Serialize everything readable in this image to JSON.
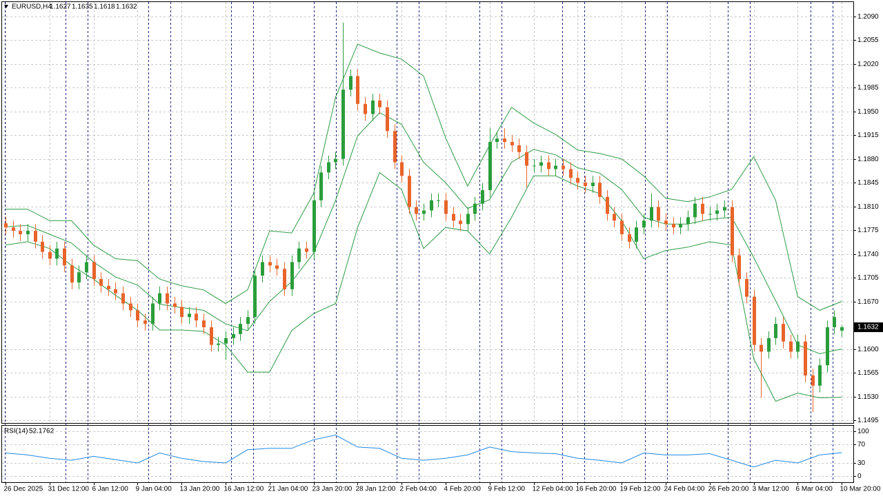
{
  "chart_data": [
    {
      "type": "candlestick",
      "symbol": "EURUSD,H4",
      "up_color": "#2a9d3b",
      "down_color": "#e8642a",
      "wick_color": "#333333",
      "open": [
        1.1785,
        1.1779,
        1.1774,
        1.1769,
        1.1774,
        1.1758,
        1.1743,
        1.1733,
        1.1748,
        1.1723,
        1.1698,
        1.1713,
        1.1728,
        1.1703,
        1.1693,
        1.1688,
        1.1682,
        1.1667,
        1.1657,
        1.1642,
        1.1637,
        1.1667,
        1.1682,
        1.1667,
        1.1662,
        1.1647,
        1.1652,
        1.1642,
        1.1632,
        1.1606,
        1.1608,
        1.1616,
        1.1622,
        1.1637,
        1.1647,
        1.1708,
        1.1728,
        1.1723,
        1.1718,
        1.1688,
        1.1728,
        1.1748,
        1.1743,
        1.1819,
        1.186,
        1.1875,
        1.188,
        1.1982,
        1.2002,
        1.1961,
        1.1946,
        1.1966,
        1.1956,
        1.1921,
        1.1875,
        1.1855,
        1.1809,
        1.1799,
        1.1804,
        1.1819,
        1.1819,
        1.1799,
        1.1789,
        1.1784,
        1.1799,
        1.1814,
        1.1834,
        1.1905,
        1.191,
        1.1905,
        1.19,
        1.189,
        1.187,
        1.187,
        1.1875,
        1.1865,
        1.187,
        1.1865,
        1.1852,
        1.1845,
        1.184,
        1.1845,
        1.1824,
        1.1799,
        1.1789,
        1.1769,
        1.1758,
        1.1779,
        1.1789,
        1.1809,
        1.1789,
        1.1784,
        1.1779,
        1.1784,
        1.1794,
        1.1814,
        1.1799,
        1.1799,
        1.1804,
        1.1809,
        1.1738,
        1.1703,
        1.1677,
        1.1606,
        1.1596,
        1.1616,
        1.1637,
        1.1611,
        1.1596,
        1.1611,
        1.1561,
        1.1546,
        1.1576,
        1.1632,
        1.1627
      ],
      "high": [
        1.1795,
        1.1789,
        1.1784,
        1.1784,
        1.1784,
        1.1768,
        1.1753,
        1.1758,
        1.1758,
        1.1733,
        1.1723,
        1.1738,
        1.1738,
        1.1713,
        1.1703,
        1.1698,
        1.1692,
        1.1677,
        1.1667,
        1.1652,
        1.1677,
        1.1692,
        1.1692,
        1.1677,
        1.1672,
        1.1662,
        1.1662,
        1.1652,
        1.1642,
        1.1618,
        1.1626,
        1.1632,
        1.1647,
        1.1657,
        1.1718,
        1.1738,
        1.1738,
        1.1733,
        1.1728,
        1.1738,
        1.1758,
        1.1758,
        1.1829,
        1.187,
        1.1885,
        1.189,
        1.2081,
        1.2012,
        1.2012,
        1.1971,
        1.1976,
        1.1976,
        1.1966,
        1.1931,
        1.1885,
        1.1865,
        1.1819,
        1.1814,
        1.1829,
        1.1829,
        1.1829,
        1.1809,
        1.1799,
        1.1809,
        1.1824,
        1.1844,
        1.1925,
        1.192,
        1.1925,
        1.1915,
        1.191,
        1.19,
        1.188,
        1.1885,
        1.1885,
        1.188,
        1.188,
        1.1875,
        1.1862,
        1.1855,
        1.1855,
        1.1855,
        1.1834,
        1.1809,
        1.1799,
        1.1779,
        1.1789,
        1.1799,
        1.1829,
        1.1819,
        1.1799,
        1.1794,
        1.1794,
        1.1804,
        1.1824,
        1.1824,
        1.1809,
        1.1814,
        1.1819,
        1.1819,
        1.1748,
        1.1713,
        1.1687,
        1.1616,
        1.1626,
        1.1647,
        1.1647,
        1.1621,
        1.1621,
        1.1621,
        1.1571,
        1.1586,
        1.1642,
        1.1657,
        1.1635
      ],
      "low": [
        1.1769,
        1.1764,
        1.1759,
        1.1759,
        1.1748,
        1.1733,
        1.1723,
        1.1723,
        1.1713,
        1.1688,
        1.1688,
        1.1703,
        1.1693,
        1.1683,
        1.1678,
        1.1672,
        1.1657,
        1.1647,
        1.1632,
        1.1627,
        1.1627,
        1.1657,
        1.1657,
        1.1652,
        1.1637,
        1.1637,
        1.1632,
        1.1622,
        1.1596,
        1.1596,
        1.1584,
        1.1606,
        1.1612,
        1.1627,
        1.1637,
        1.1698,
        1.1713,
        1.1708,
        1.1678,
        1.1678,
        1.1718,
        1.1733,
        1.1733,
        1.1809,
        1.185,
        1.1865,
        1.187,
        1.1972,
        1.1951,
        1.1936,
        1.1936,
        1.1946,
        1.1911,
        1.1865,
        1.1845,
        1.1799,
        1.1789,
        1.1789,
        1.1794,
        1.1809,
        1.1789,
        1.1779,
        1.1774,
        1.1774,
        1.1789,
        1.1804,
        1.1824,
        1.1895,
        1.1895,
        1.189,
        1.188,
        1.1838,
        1.186,
        1.186,
        1.1855,
        1.1855,
        1.1855,
        1.1842,
        1.1835,
        1.183,
        1.183,
        1.1814,
        1.1789,
        1.1779,
        1.1759,
        1.1748,
        1.1748,
        1.1769,
        1.1779,
        1.1779,
        1.1774,
        1.1769,
        1.1769,
        1.1774,
        1.1784,
        1.1789,
        1.1789,
        1.1789,
        1.1794,
        1.1728,
        1.1693,
        1.1667,
        1.1596,
        1.1528,
        1.1586,
        1.1606,
        1.1601,
        1.1586,
        1.1586,
        1.1551,
        1.1507,
        1.1536,
        1.1566,
        1.1622,
        1.1618
      ],
      "close": [
        1.1779,
        1.1774,
        1.1769,
        1.1774,
        1.1758,
        1.1743,
        1.1733,
        1.1748,
        1.1723,
        1.1698,
        1.1713,
        1.1728,
        1.1703,
        1.1693,
        1.1688,
        1.1682,
        1.1667,
        1.1657,
        1.1642,
        1.1637,
        1.1667,
        1.1682,
        1.1667,
        1.1662,
        1.1647,
        1.1652,
        1.1642,
        1.1632,
        1.1606,
        1.1608,
        1.1616,
        1.1622,
        1.1637,
        1.1647,
        1.1708,
        1.1728,
        1.1723,
        1.1718,
        1.1688,
        1.1728,
        1.1748,
        1.1743,
        1.1819,
        1.186,
        1.1875,
        1.188,
        1.1982,
        1.2002,
        1.1961,
        1.1946,
        1.1966,
        1.1956,
        1.1921,
        1.1875,
        1.1855,
        1.1809,
        1.1799,
        1.1804,
        1.1819,
        1.1819,
        1.1799,
        1.1789,
        1.1784,
        1.1799,
        1.1814,
        1.1834,
        1.1905,
        1.191,
        1.1905,
        1.19,
        1.189,
        1.187,
        1.187,
        1.1875,
        1.1865,
        1.187,
        1.1865,
        1.1852,
        1.1845,
        1.184,
        1.1845,
        1.1824,
        1.1799,
        1.1789,
        1.1769,
        1.1758,
        1.1779,
        1.1789,
        1.1809,
        1.1789,
        1.1784,
        1.1779,
        1.1784,
        1.1794,
        1.1814,
        1.1799,
        1.1799,
        1.1804,
        1.1809,
        1.1738,
        1.1703,
        1.1677,
        1.1606,
        1.1596,
        1.1616,
        1.1637,
        1.1611,
        1.1596,
        1.1611,
        1.1561,
        1.1546,
        1.1576,
        1.1632,
        1.1647,
        1.1632
      ],
      "bands": {
        "color": "#2e9b45",
        "x": [
          0,
          3,
          6,
          9,
          12,
          15,
          18,
          21,
          24,
          27,
          30,
          33,
          36,
          39,
          42,
          45,
          48,
          51,
          54,
          57,
          60,
          63,
          66,
          69,
          72,
          75,
          78,
          81,
          84,
          87,
          90,
          93,
          96,
          99,
          102,
          105,
          108,
          111,
          114
        ],
        "upper": [
          1.1806,
          1.1806,
          1.1789,
          1.1789,
          1.1753,
          1.1733,
          1.173,
          1.1703,
          1.1693,
          1.1687,
          1.1667,
          1.1687,
          1.1774,
          1.1771,
          1.1829,
          1.1971,
          1.2049,
          1.2036,
          1.2027,
          1.2002,
          1.1911,
          1.184,
          1.19,
          1.1956,
          1.1933,
          1.1916,
          1.1893,
          1.1888,
          1.188,
          1.1855,
          1.1822,
          1.1817,
          1.1824,
          1.1835,
          1.1883,
          1.1819,
          1.1677,
          1.1657,
          1.167
        ],
        "middle": [
          1.178,
          1.1782,
          1.1769,
          1.1756,
          1.1728,
          1.1706,
          1.1694,
          1.1666,
          1.1661,
          1.1657,
          1.1637,
          1.1627,
          1.167,
          1.1699,
          1.1741,
          1.1819,
          1.1914,
          1.1948,
          1.1931,
          1.1875,
          1.1845,
          1.1807,
          1.182,
          1.1875,
          1.1894,
          1.1886,
          1.1867,
          1.1859,
          1.1835,
          1.1794,
          1.1784,
          1.1784,
          1.1791,
          1.1794,
          1.1735,
          1.1671,
          1.1606,
          1.1593,
          1.16
        ],
        "lower": [
          1.1753,
          1.1758,
          1.1748,
          1.1723,
          1.1703,
          1.1679,
          1.1657,
          1.1628,
          1.1628,
          1.1626,
          1.1606,
          1.1566,
          1.1566,
          1.1627,
          1.1652,
          1.1667,
          1.1779,
          1.186,
          1.1835,
          1.1748,
          1.1779,
          1.1774,
          1.174,
          1.1794,
          1.1855,
          1.1855,
          1.184,
          1.1829,
          1.1789,
          1.1733,
          1.1745,
          1.175,
          1.1758,
          1.1753,
          1.1586,
          1.1523,
          1.1535,
          1.1528,
          1.1529
        ]
      },
      "ylim": [
        1.1491,
        1.2111
      ],
      "yticks": [
        {
          "value": 1.209,
          "label": "1.2090"
        },
        1.2055,
        {
          "value": 1.202,
          "label": "1.2020"
        },
        1.1985,
        {
          "value": 1.195,
          "label": "1.1950"
        },
        1.1915,
        {
          "value": 1.188,
          "label": "1.1880"
        },
        1.1845,
        {
          "value": 1.181,
          "label": "1.1810"
        },
        1.1775,
        {
          "value": 1.174,
          "label": "1.1740"
        },
        1.1705,
        {
          "value": 1.167,
          "label": "1.1670"
        },
        {
          "value": 1.16,
          "label": "1.1600"
        },
        1.1565,
        {
          "value": 1.153,
          "label": "1.1530"
        },
        1.1495
      ],
      "xlim": [
        -0.47,
        115.59
      ],
      "xticks": [
        {
          "value": 0,
          "label": "26 Dec 2025"
        },
        {
          "value": 6,
          "label": "31 Dec 12:00"
        },
        {
          "value": 12,
          "label": "6 Jan 12:00"
        },
        {
          "value": 18,
          "label": "9 Jan 04:00"
        },
        {
          "value": 24,
          "label": "13 Jan 20:00"
        },
        {
          "value": 30,
          "label": "16 Jan 12:00"
        },
        {
          "value": 36,
          "label": "21 Jan 04:00"
        },
        {
          "value": 42,
          "label": "23 Jan 20:00"
        },
        {
          "value": 48,
          "label": "28 Jan 12:00"
        },
        {
          "value": 54,
          "label": "2 Feb 04:00"
        },
        {
          "value": 60,
          "label": "4 Feb 20:00"
        },
        {
          "value": 66,
          "label": "9 Feb 12:00"
        },
        {
          "value": 72,
          "label": "12 Feb 04:00"
        },
        {
          "value": 78,
          "label": "16 Feb 20:00"
        },
        {
          "value": 84,
          "label": "19 Feb 12:00"
        },
        {
          "value": 90,
          "label": "24 Feb 04:00"
        },
        {
          "value": 96,
          "label": "26 Feb 20:00"
        },
        {
          "value": 102,
          "label": "3 Mar 12:00"
        },
        {
          "value": 108,
          "label": "6 Mar 04:00"
        },
        {
          "value": 114,
          "label": "10 Mar 20:00"
        }
      ],
      "grid": true
    },
    {
      "type": "line",
      "title": "RSI(14)",
      "color": "#1e88e5",
      "x": [
        0,
        3,
        6,
        9,
        12,
        15,
        18,
        21,
        24,
        27,
        30,
        33,
        36,
        39,
        42,
        45,
        48,
        51,
        54,
        57,
        60,
        63,
        66,
        69,
        72,
        75,
        78,
        81,
        84,
        87,
        90,
        93,
        96,
        99,
        102,
        105,
        108,
        111,
        114
      ],
      "values": [
        51.5,
        47.1,
        39.7,
        35.3,
        44.1,
        36.8,
        29.4,
        51.5,
        39.7,
        32.4,
        29.4,
        58.8,
        61.8,
        61.8,
        80.9,
        91.2,
        64.7,
        61.8,
        39.7,
        35.3,
        39.7,
        47.1,
        64.7,
        54.4,
        51.5,
        50.0,
        39.7,
        35.3,
        29.4,
        51.5,
        47.1,
        47.1,
        50.0,
        35.3,
        20.6,
        35.3,
        29.4,
        47.1,
        52.1762
      ],
      "ylim": [
        -11.8,
        108.8
      ],
      "yticks": [
        100,
        70,
        30,
        0
      ],
      "grid": true
    }
  ]
}
